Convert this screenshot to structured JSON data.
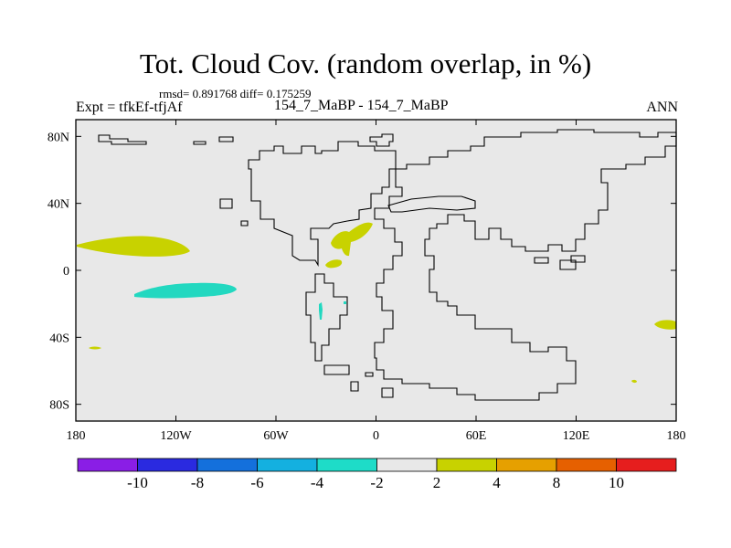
{
  "title": "Tot. Cloud Cov. (random overlap, in %)",
  "stats": "rmsd= 0.891768 diff= 0.175259",
  "left_label": "Expt = tfkEf-tfjAf",
  "center_label": "154_7_MaBP - 154_7_MaBP",
  "right_label": "ANN",
  "map": {
    "lon_ticks": [
      {
        "label": "180",
        "lon": -180
      },
      {
        "label": "120W",
        "lon": -120
      },
      {
        "label": "60W",
        "lon": -60
      },
      {
        "label": "0",
        "lon": 0
      },
      {
        "label": "60E",
        "lon": 60
      },
      {
        "label": "120E",
        "lon": 120
      },
      {
        "label": "180",
        "lon": 180
      }
    ],
    "lat_ticks": [
      {
        "label": "80N",
        "lat": 80
      },
      {
        "label": "40N",
        "lat": 40
      },
      {
        "label": "0",
        "lat": 0
      },
      {
        "label": "40S",
        "lat": -40
      },
      {
        "label": "80S",
        "lat": -80
      }
    ],
    "colors": {
      "background": "#e8e8e8",
      "positive_2_4": "#c8d200",
      "negative_2_4": "#22d8c0",
      "coastline": "#000000"
    },
    "anomalies": [
      {
        "name": "central-pacific-north",
        "class": "2 to 4",
        "lon": -137,
        "lat": 13
      },
      {
        "name": "central-pacific-south",
        "class": "-4 to -2",
        "lon": -123,
        "lat": -13
      },
      {
        "name": "atlantic-tropical",
        "class": "2 to 4",
        "lon": -17,
        "lat": 20
      },
      {
        "name": "atlantic-equatorial",
        "class": "2 to 4",
        "lon": -23,
        "lat": 3
      },
      {
        "name": "south-pacific-small",
        "class": "2 to 4",
        "lon": -170,
        "lat": -47
      },
      {
        "name": "south-atlantic-small",
        "class": "-4 to -2",
        "lon": -33,
        "lat": -24
      },
      {
        "name": "southwest-pacific",
        "class": "2 to 4",
        "lon": 174,
        "lat": -33
      },
      {
        "name": "southern-ocean-dot",
        "class": "2 to 4",
        "lon": 156,
        "lat": -66
      }
    ]
  },
  "colorbar": {
    "colors": [
      "#8a1ee6",
      "#2a2ae0",
      "#1470dc",
      "#14b0e0",
      "#1edcc8",
      "#e8e8e8",
      "#c8d200",
      "#e6a000",
      "#e66000",
      "#e61e1e"
    ],
    "labels": [
      "-10",
      "-8",
      "-6",
      "-4",
      "-2",
      "2",
      "4",
      "8",
      "10"
    ]
  }
}
